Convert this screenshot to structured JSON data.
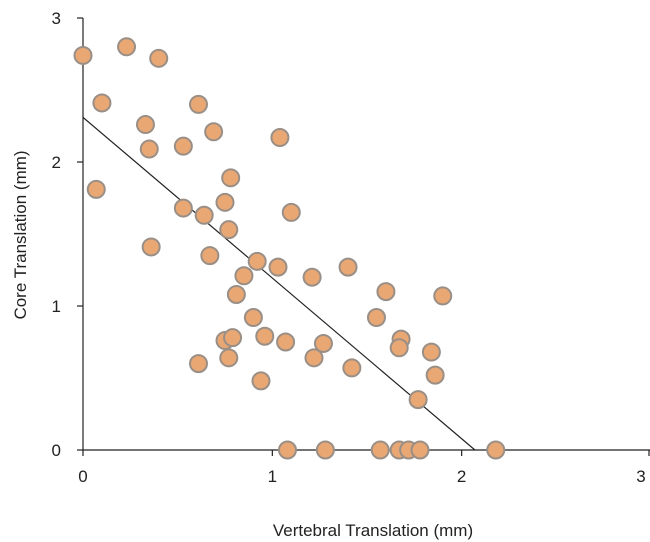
{
  "chart_data": {
    "type": "scatter",
    "title": "",
    "xlabel": "Vertebral Translation (mm)",
    "ylabel": "Core Translation (mm)",
    "xlim": [
      0,
      3
    ],
    "ylim": [
      0,
      3
    ],
    "xticks": [
      "0",
      "1",
      "2",
      "3"
    ],
    "yticks": [
      "0",
      "1",
      "2",
      "3"
    ],
    "grid": false,
    "legend": "none",
    "series": [
      {
        "marker_color": "#e9a774",
        "marker_edge": "#9a8f86",
        "points": [
          [
            0.0,
            2.74
          ],
          [
            0.23,
            2.8
          ],
          [
            0.4,
            2.72
          ],
          [
            0.1,
            2.41
          ],
          [
            0.61,
            2.4
          ],
          [
            0.33,
            2.26
          ],
          [
            0.69,
            2.21
          ],
          [
            1.04,
            2.17
          ],
          [
            0.35,
            2.09
          ],
          [
            0.53,
            2.11
          ],
          [
            0.07,
            1.81
          ],
          [
            0.78,
            1.89
          ],
          [
            0.75,
            1.72
          ],
          [
            0.53,
            1.68
          ],
          [
            0.64,
            1.63
          ],
          [
            1.1,
            1.65
          ],
          [
            0.77,
            1.53
          ],
          [
            0.36,
            1.41
          ],
          [
            0.67,
            1.35
          ],
          [
            0.92,
            1.31
          ],
          [
            1.03,
            1.27
          ],
          [
            1.4,
            1.27
          ],
          [
            0.85,
            1.21
          ],
          [
            1.21,
            1.2
          ],
          [
            1.6,
            1.1
          ],
          [
            0.81,
            1.08
          ],
          [
            1.9,
            1.07
          ],
          [
            1.55,
            0.92
          ],
          [
            0.9,
            0.92
          ],
          [
            0.75,
            0.76
          ],
          [
            0.79,
            0.78
          ],
          [
            0.96,
            0.79
          ],
          [
            1.07,
            0.75
          ],
          [
            1.27,
            0.74
          ],
          [
            1.68,
            0.77
          ],
          [
            1.67,
            0.71
          ],
          [
            1.84,
            0.68
          ],
          [
            0.77,
            0.64
          ],
          [
            1.22,
            0.64
          ],
          [
            0.61,
            0.6
          ],
          [
            1.42,
            0.57
          ],
          [
            1.86,
            0.52
          ],
          [
            0.94,
            0.48
          ],
          [
            1.77,
            0.35
          ],
          [
            1.08,
            0.0
          ],
          [
            1.28,
            0.0
          ],
          [
            1.57,
            0.0
          ],
          [
            1.67,
            0.0
          ],
          [
            1.72,
            0.0
          ],
          [
            1.78,
            0.0
          ],
          [
            2.18,
            0.0
          ]
        ]
      }
    ],
    "trendline": {
      "x": [
        0.0,
        2.07
      ],
      "y": [
        2.31,
        0.0
      ],
      "color": "#222222"
    }
  }
}
